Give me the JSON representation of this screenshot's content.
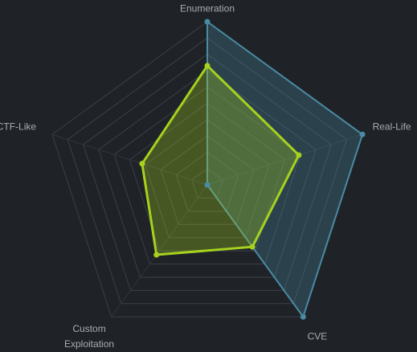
{
  "chart_data": {
    "type": "radar",
    "categories": [
      "Enumeration",
      "Real-Life",
      "CVE",
      "Custom Exploitation",
      "CTF-Like"
    ],
    "rlim": [
      0,
      10
    ],
    "rticks": [
      1,
      2,
      3,
      4,
      5,
      6,
      7,
      8,
      9,
      10
    ],
    "grid": true,
    "series": [
      {
        "color": "#4a8aa3",
        "values": [
          10,
          10,
          10,
          0,
          0
        ]
      },
      {
        "color": "#a6d11e",
        "values": [
          7.3,
          5.9,
          4.7,
          5.3,
          4.2
        ]
      }
    ]
  }
}
